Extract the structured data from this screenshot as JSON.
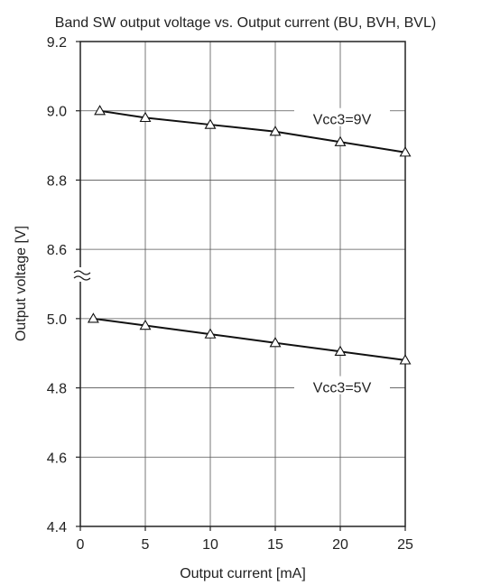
{
  "chart_data": {
    "type": "line",
    "title": "Band SW output voltage vs. Output current (BU, BVH, BVL)",
    "xlabel": "Output current [mA]",
    "ylabel": "Output voltage [V]",
    "xlim": [
      0,
      25
    ],
    "x_ticks": [
      "0",
      "5",
      "10",
      "15",
      "20",
      "25"
    ],
    "y_ticks": [
      "9.2",
      "9.0",
      "8.8",
      "8.6",
      "5.0",
      "4.8",
      "4.6",
      "4.4"
    ],
    "y_axis_break": "between 8.6 and 5.0",
    "upper_ylim": [
      8.6,
      9.2
    ],
    "lower_ylim": [
      4.4,
      5.0
    ],
    "grid": true,
    "series": [
      {
        "name": "Vcc3=9V",
        "marker": "open-triangle",
        "x": [
          1.5,
          5,
          10,
          15,
          20,
          25
        ],
        "y": [
          9.0,
          8.98,
          8.96,
          8.94,
          8.91,
          8.88
        ]
      },
      {
        "name": "Vcc3=5V",
        "marker": "open-triangle",
        "x": [
          1,
          5,
          10,
          15,
          20,
          25
        ],
        "y": [
          5.0,
          4.98,
          4.955,
          4.93,
          4.905,
          4.88
        ]
      }
    ]
  }
}
